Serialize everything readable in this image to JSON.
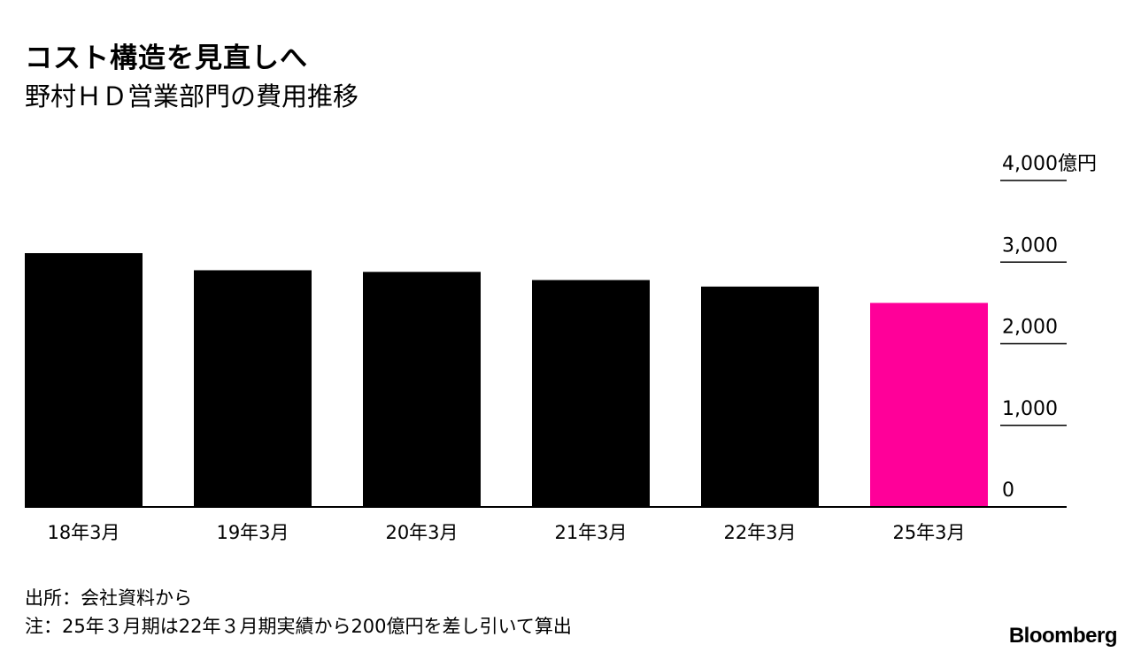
{
  "chart_data": {
    "type": "bar",
    "title": "コスト構造を見直しへ",
    "subtitle": "野村ＨＤ営業部門の費用推移",
    "categories": [
      "18年3月",
      "19年3月",
      "20年3月",
      "21年3月",
      "22年3月",
      "25年3月"
    ],
    "values": [
      3110,
      2900,
      2880,
      2780,
      2700,
      2500
    ],
    "highlight_index": 5,
    "colors": {
      "default": "#000000",
      "highlight": "#ff0099"
    },
    "ylim": [
      0,
      4000
    ],
    "yticks": [
      0,
      1000,
      2000,
      3000,
      4000
    ],
    "ytick_labels": [
      "0",
      "1,000",
      "2,000",
      "3,000",
      "4,000億円"
    ],
    "axis_position": "right",
    "xlabel": "",
    "ylabel": ""
  },
  "footer": {
    "source": "出所：会社資料から",
    "note": "注：25年３月期は22年３月期実績から200億円を差し引いて算出",
    "brand": "Bloomberg"
  }
}
